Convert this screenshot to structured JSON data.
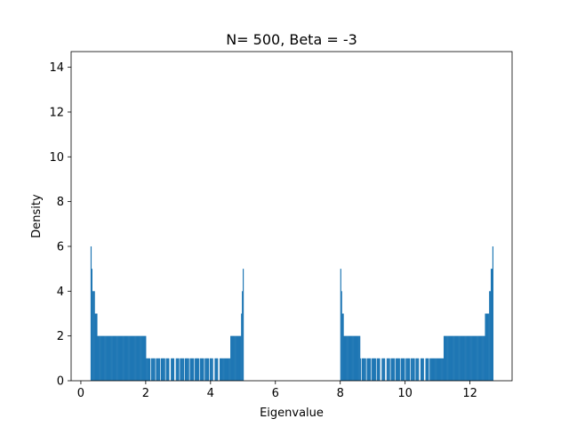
{
  "chart_data": {
    "type": "bar",
    "title": "N= 500, Beta = -3",
    "xlabel": "Eigenvalue",
    "ylabel": "Density",
    "xlim": [
      -0.3,
      13.3
    ],
    "ylim": [
      0,
      14.7
    ],
    "xticks": [
      0,
      2,
      4,
      6,
      8,
      10,
      12
    ],
    "yticks": [
      0,
      2,
      4,
      6,
      8,
      10,
      12,
      14
    ],
    "grid": false,
    "color": "#1f77b4",
    "bin_width": 0.0255,
    "clusters": [
      {
        "range": [
          0.3,
          5.0
        ],
        "profile": [
          [
            0.3,
            6
          ],
          [
            0.33,
            5
          ],
          [
            0.36,
            4
          ],
          [
            0.39,
            4
          ],
          [
            0.42,
            3
          ],
          [
            0.45,
            3
          ],
          [
            0.5,
            2
          ],
          [
            0.6,
            2
          ],
          [
            0.7,
            2
          ],
          [
            0.8,
            2
          ],
          [
            0.9,
            2
          ],
          [
            1.0,
            2
          ],
          [
            1.15,
            2
          ],
          [
            1.3,
            2
          ],
          [
            1.5,
            2
          ],
          [
            1.8,
            2
          ],
          [
            2.0,
            1
          ],
          [
            4.5,
            1
          ],
          [
            4.6,
            2
          ],
          [
            4.7,
            2
          ],
          [
            4.8,
            2
          ],
          [
            4.88,
            2
          ],
          [
            4.93,
            3
          ],
          [
            4.96,
            4
          ],
          [
            4.99,
            5
          ]
        ],
        "gaps": [
          2.15,
          2.3,
          2.45,
          2.6,
          2.75,
          2.9,
          3.05,
          3.2,
          3.35,
          3.5,
          3.65,
          3.8,
          3.95,
          4.1,
          4.25
        ]
      },
      {
        "range": [
          8.0,
          12.7
        ],
        "profile": [
          [
            8.0,
            5
          ],
          [
            8.03,
            4
          ],
          [
            8.06,
            3
          ],
          [
            8.1,
            2
          ],
          [
            8.2,
            2
          ],
          [
            8.3,
            2
          ],
          [
            8.45,
            2
          ],
          [
            8.6,
            1
          ],
          [
            11.2,
            2
          ],
          [
            11.4,
            2
          ],
          [
            11.6,
            2
          ],
          [
            11.8,
            2
          ],
          [
            12.0,
            2
          ],
          [
            12.2,
            2
          ],
          [
            12.35,
            2
          ],
          [
            12.45,
            3
          ],
          [
            12.52,
            3
          ],
          [
            12.58,
            4
          ],
          [
            12.64,
            5
          ],
          [
            12.7,
            6
          ]
        ],
        "gaps": [
          8.65,
          8.8,
          8.95,
          9.1,
          9.25,
          9.4,
          9.55,
          9.7,
          9.85,
          10.0,
          10.15,
          10.3,
          10.45,
          10.6,
          10.75
        ]
      }
    ]
  }
}
